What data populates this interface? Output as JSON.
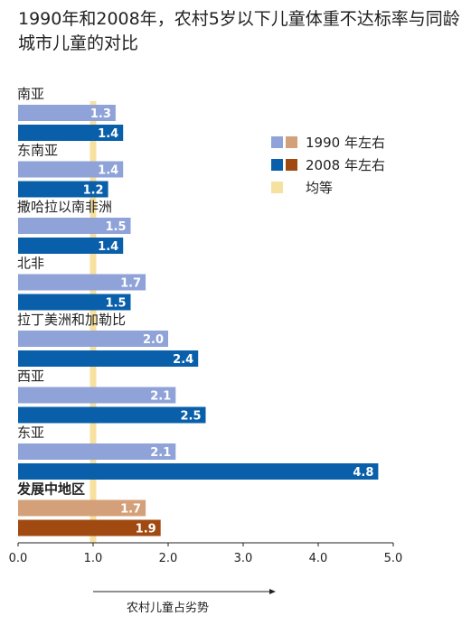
{
  "title": "1990年和2008年，农村5岁以下儿童体重不达标率与同龄城市儿童的对比",
  "colors": {
    "regional_1990": "#8fa3d8",
    "regional_2008": "#0a5faa",
    "developing_1990": "#d4a07a",
    "developing_2008": "#a04a12",
    "parity": "#f7e1a0"
  },
  "legend": [
    {
      "label": "1990 年左右",
      "swatches": [
        "#8fa3d8",
        "#d4a07a"
      ]
    },
    {
      "label": "2008 年左右",
      "swatches": [
        "#0a5faa",
        "#a04a12"
      ]
    },
    {
      "label": "均等",
      "swatches": [
        "#f7e1a0"
      ]
    }
  ],
  "arrow_label": "农村儿童占劣势",
  "chart_data": {
    "type": "bar",
    "orientation": "horizontal",
    "title": "1990年和2008年，农村5岁以下儿童体重不达标率与同龄城市儿童的对比",
    "categories": [
      "南亚",
      "东南亚",
      "撒哈拉以南非洲",
      "北非",
      "拉丁美洲和加勒比",
      "西亚",
      "东亚",
      "发展中地区"
    ],
    "series": [
      {
        "name": "1990 年左右",
        "values": [
          1.3,
          1.4,
          1.5,
          1.7,
          2.0,
          2.1,
          2.1,
          1.7
        ]
      },
      {
        "name": "2008 年左右",
        "values": [
          1.4,
          1.2,
          1.4,
          1.5,
          2.4,
          2.5,
          4.8,
          1.9
        ]
      }
    ],
    "value_labels": [
      [
        "1.3",
        "1.4",
        "1.5",
        "1.7",
        "2.0",
        "2.1",
        "2.1",
        "1.7"
      ],
      [
        "1.4",
        "1.2",
        "1.4",
        "1.5",
        "2.4",
        "2.5",
        "4.8",
        "1.9"
      ]
    ],
    "xlim": [
      0,
      5
    ],
    "xticks": [
      "0.0",
      "1.0",
      "2.0",
      "3.0",
      "4.0",
      "5.0"
    ],
    "reference_line": {
      "value": 1.0,
      "name": "均等"
    },
    "xlabel": "",
    "ylabel": ""
  }
}
